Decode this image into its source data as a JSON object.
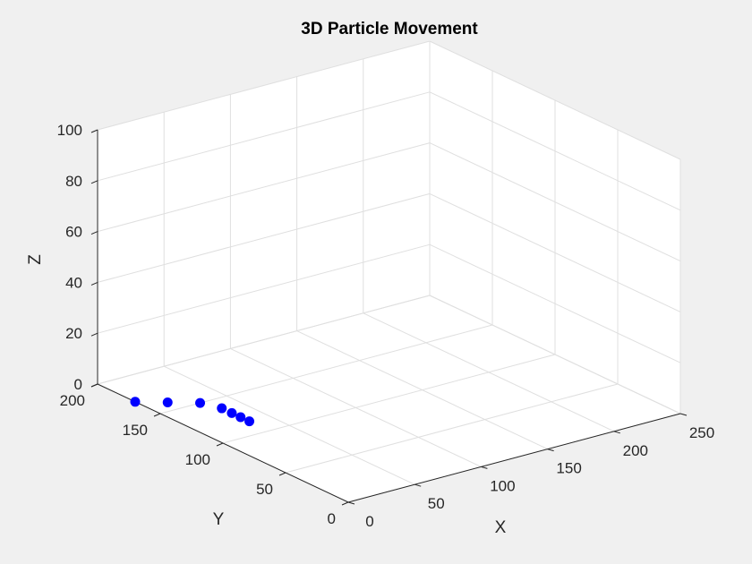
{
  "chart_data": {
    "type": "scatter",
    "title": "3D Particle Movement",
    "xlabel": "X",
    "ylabel": "Y",
    "zlabel": "Z",
    "xlim": [
      0,
      250
    ],
    "ylim": [
      0,
      200
    ],
    "zlim": [
      0,
      100
    ],
    "xticks": [
      0,
      50,
      100,
      150,
      200,
      250
    ],
    "yticks": [
      0,
      50,
      100,
      150,
      200
    ],
    "zticks": [
      0,
      20,
      40,
      60,
      80,
      100
    ],
    "grid": true,
    "points": [
      {
        "x": 0,
        "y": 170,
        "z": 0
      },
      {
        "x": 15,
        "y": 160,
        "z": 0
      },
      {
        "x": 30,
        "y": 150,
        "z": 0
      },
      {
        "x": 35,
        "y": 138,
        "z": 0
      },
      {
        "x": 35,
        "y": 130,
        "z": 0
      },
      {
        "x": 35,
        "y": 123,
        "z": 0
      },
      {
        "x": 35,
        "y": 116,
        "z": 0
      }
    ],
    "marker_color": "#0000ff"
  },
  "colors": {
    "background": "#f0f0f0",
    "axes_background": "#ffffff",
    "grid": "#dfdfdf",
    "axis": "#262626"
  }
}
